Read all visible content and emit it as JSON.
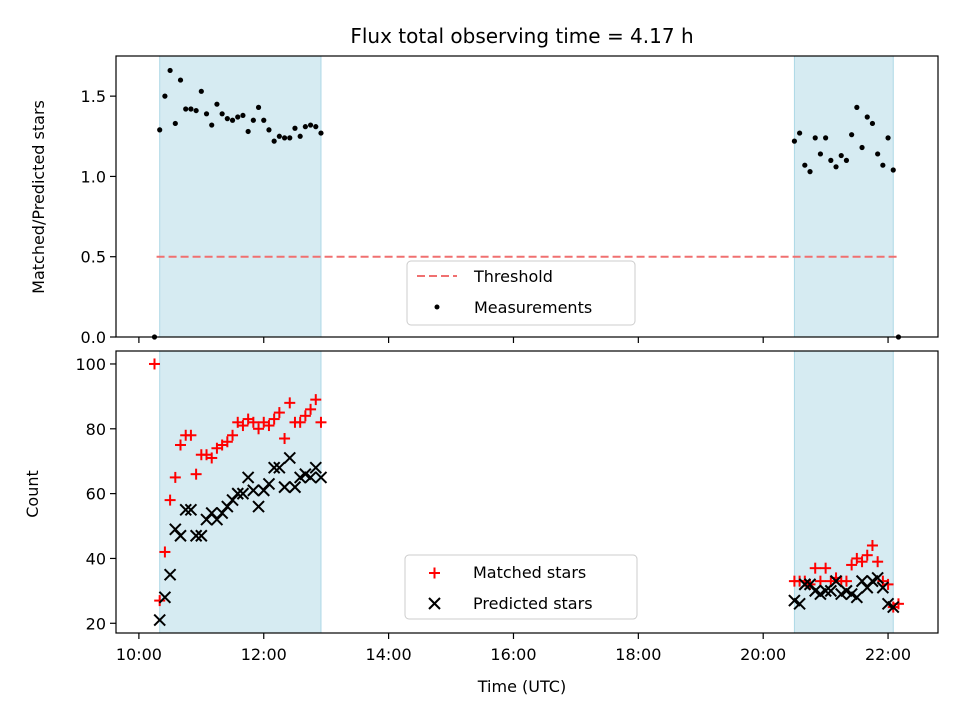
{
  "chart_data": [
    {
      "type": "scatter",
      "title": "Flux total observing time = 4.17 h",
      "xlabel": "",
      "ylabel": "Matched/Predicted stars",
      "xlim": [
        "09:38",
        "22:48"
      ],
      "ylim": [
        0,
        1.75
      ],
      "yticks": [
        "0.0",
        "0.5",
        "1.0",
        "1.5"
      ],
      "ytick_values": [
        0,
        0.5,
        1.0,
        1.5
      ],
      "grid": false,
      "legend_position": "bottom-center",
      "shaded_regions": [
        {
          "start": "10:20",
          "end": "12:55"
        },
        {
          "start": "20:30",
          "end": "22:05"
        }
      ],
      "threshold": {
        "name": "Threshold",
        "value": 0.5,
        "x_start": "10:17",
        "x_end": "22:10",
        "color": "#f07070"
      },
      "series": [
        {
          "name": "Measurements",
          "color": "#000000",
          "points": [
            [
              "10:15",
              0.0
            ],
            [
              "10:20",
              1.29
            ],
            [
              "10:25",
              1.5
            ],
            [
              "10:30",
              1.66
            ],
            [
              "10:35",
              1.33
            ],
            [
              "10:40",
              1.6
            ],
            [
              "10:45",
              1.42
            ],
            [
              "10:50",
              1.42
            ],
            [
              "10:55",
              1.41
            ],
            [
              "11:00",
              1.53
            ],
            [
              "11:05",
              1.39
            ],
            [
              "11:10",
              1.32
            ],
            [
              "11:15",
              1.45
            ],
            [
              "11:20",
              1.39
            ],
            [
              "11:25",
              1.36
            ],
            [
              "11:30",
              1.35
            ],
            [
              "11:35",
              1.37
            ],
            [
              "11:40",
              1.38
            ],
            [
              "11:45",
              1.28
            ],
            [
              "11:50",
              1.35
            ],
            [
              "11:55",
              1.43
            ],
            [
              "12:00",
              1.35
            ],
            [
              "12:05",
              1.29
            ],
            [
              "12:10",
              1.22
            ],
            [
              "12:15",
              1.25
            ],
            [
              "12:20",
              1.24
            ],
            [
              "12:25",
              1.24
            ],
            [
              "12:30",
              1.3
            ],
            [
              "12:35",
              1.25
            ],
            [
              "12:40",
              1.31
            ],
            [
              "12:45",
              1.32
            ],
            [
              "12:50",
              1.31
            ],
            [
              "12:55",
              1.27
            ],
            [
              "20:30",
              1.22
            ],
            [
              "20:35",
              1.27
            ],
            [
              "20:40",
              1.07
            ],
            [
              "20:45",
              1.03
            ],
            [
              "20:50",
              1.24
            ],
            [
              "20:55",
              1.14
            ],
            [
              "21:00",
              1.24
            ],
            [
              "21:05",
              1.1
            ],
            [
              "21:10",
              1.06
            ],
            [
              "21:15",
              1.13
            ],
            [
              "21:20",
              1.1
            ],
            [
              "21:25",
              1.26
            ],
            [
              "21:30",
              1.43
            ],
            [
              "21:35",
              1.18
            ],
            [
              "21:40",
              1.37
            ],
            [
              "21:45",
              1.33
            ],
            [
              "21:50",
              1.14
            ],
            [
              "21:55",
              1.07
            ],
            [
              "22:00",
              1.24
            ],
            [
              "22:05",
              1.04
            ],
            [
              "22:10",
              0.0
            ]
          ]
        }
      ]
    },
    {
      "type": "scatter",
      "title": "",
      "xlabel": "Time (UTC)",
      "ylabel": "Count",
      "xlim": [
        "09:38",
        "22:48"
      ],
      "ylim": [
        17,
        104
      ],
      "xticks": [
        "10:00",
        "12:00",
        "14:00",
        "16:00",
        "18:00",
        "20:00",
        "22:00"
      ],
      "yticks": [
        "20",
        "40",
        "60",
        "80",
        "100"
      ],
      "ytick_values": [
        20,
        40,
        60,
        80,
        100
      ],
      "grid": false,
      "legend_position": "bottom-center",
      "shaded_regions": [
        {
          "start": "10:20",
          "end": "12:55"
        },
        {
          "start": "20:30",
          "end": "22:05"
        }
      ],
      "series": [
        {
          "name": "Matched stars",
          "color": "#ff0000",
          "marker": "plus",
          "points": [
            [
              "10:15",
              100
            ],
            [
              "10:20",
              27
            ],
            [
              "10:25",
              42
            ],
            [
              "10:30",
              58
            ],
            [
              "10:35",
              65
            ],
            [
              "10:40",
              75
            ],
            [
              "10:45",
              78
            ],
            [
              "10:50",
              78
            ],
            [
              "10:55",
              66
            ],
            [
              "11:00",
              72
            ],
            [
              "11:05",
              72
            ],
            [
              "11:10",
              71
            ],
            [
              "11:15",
              74
            ],
            [
              "11:20",
              75
            ],
            [
              "11:25",
              76
            ],
            [
              "11:30",
              78
            ],
            [
              "11:35",
              82
            ],
            [
              "11:40",
              81
            ],
            [
              "11:45",
              83
            ],
            [
              "11:50",
              82
            ],
            [
              "11:55",
              80
            ],
            [
              "12:00",
              82
            ],
            [
              "12:05",
              81
            ],
            [
              "12:10",
              83
            ],
            [
              "12:15",
              85
            ],
            [
              "12:20",
              77
            ],
            [
              "12:25",
              88
            ],
            [
              "12:30",
              82
            ],
            [
              "12:35",
              82
            ],
            [
              "12:40",
              84
            ],
            [
              "12:45",
              86
            ],
            [
              "12:50",
              89
            ],
            [
              "12:55",
              82
            ],
            [
              "20:30",
              33
            ],
            [
              "20:35",
              33
            ],
            [
              "20:40",
              33
            ],
            [
              "20:45",
              32
            ],
            [
              "20:50",
              37
            ],
            [
              "20:55",
              33
            ],
            [
              "21:00",
              37
            ],
            [
              "21:05",
              33
            ],
            [
              "21:10",
              34
            ],
            [
              "21:15",
              33
            ],
            [
              "21:20",
              33
            ],
            [
              "21:25",
              38
            ],
            [
              "21:30",
              40
            ],
            [
              "21:35",
              39
            ],
            [
              "21:40",
              41
            ],
            [
              "21:45",
              44
            ],
            [
              "21:50",
              39
            ],
            [
              "21:55",
              33
            ],
            [
              "22:00",
              32
            ],
            [
              "22:05",
              25
            ],
            [
              "22:10",
              26
            ]
          ]
        },
        {
          "name": "Predicted stars",
          "color": "#000000",
          "marker": "x",
          "points": [
            [
              "10:20",
              21
            ],
            [
              "10:25",
              28
            ],
            [
              "10:30",
              35
            ],
            [
              "10:35",
              49
            ],
            [
              "10:40",
              47
            ],
            [
              "10:45",
              55
            ],
            [
              "10:50",
              55
            ],
            [
              "10:55",
              47
            ],
            [
              "11:00",
              47
            ],
            [
              "11:05",
              52
            ],
            [
              "11:10",
              54
            ],
            [
              "11:15",
              52
            ],
            [
              "11:20",
              54
            ],
            [
              "11:25",
              56
            ],
            [
              "11:30",
              58
            ],
            [
              "11:35",
              60
            ],
            [
              "11:40",
              60
            ],
            [
              "11:45",
              65
            ],
            [
              "11:50",
              61
            ],
            [
              "11:55",
              56
            ],
            [
              "12:00",
              61
            ],
            [
              "12:05",
              63
            ],
            [
              "12:10",
              68
            ],
            [
              "12:15",
              68
            ],
            [
              "12:20",
              62
            ],
            [
              "12:25",
              71
            ],
            [
              "12:30",
              62
            ],
            [
              "12:35",
              65
            ],
            [
              "12:40",
              66
            ],
            [
              "12:45",
              65
            ],
            [
              "12:50",
              68
            ],
            [
              "12:55",
              65
            ],
            [
              "20:30",
              27
            ],
            [
              "20:35",
              26
            ],
            [
              "20:40",
              32
            ],
            [
              "20:45",
              32
            ],
            [
              "20:50",
              30
            ],
            [
              "20:55",
              29
            ],
            [
              "21:00",
              30
            ],
            [
              "21:05",
              30
            ],
            [
              "21:10",
              33
            ],
            [
              "21:15",
              29
            ],
            [
              "21:20",
              30
            ],
            [
              "21:25",
              29
            ],
            [
              "21:30",
              28
            ],
            [
              "21:35",
              33
            ],
            [
              "21:40",
              31
            ],
            [
              "21:45",
              33
            ],
            [
              "21:50",
              34
            ],
            [
              "21:55",
              31
            ],
            [
              "22:00",
              26
            ],
            [
              "22:05",
              25
            ]
          ]
        }
      ]
    }
  ]
}
